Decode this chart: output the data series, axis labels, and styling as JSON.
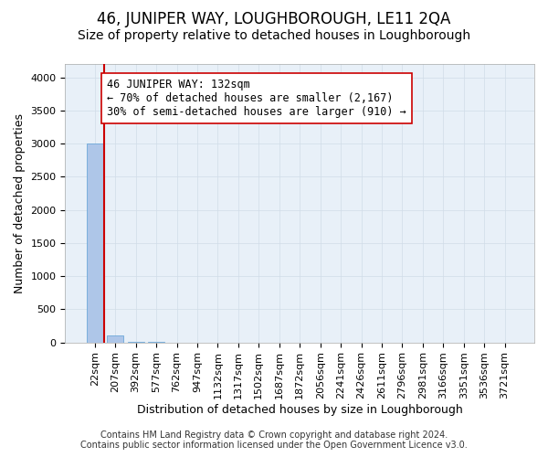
{
  "title": "46, JUNIPER WAY, LOUGHBOROUGH, LE11 2QA",
  "subtitle": "Size of property relative to detached houses in Loughborough",
  "xlabel": "Distribution of detached houses by size in Loughborough",
  "ylabel": "Number of detached properties",
  "footer_line1": "Contains HM Land Registry data © Crown copyright and database right 2024.",
  "footer_line2": "Contains public sector information licensed under the Open Government Licence v3.0.",
  "bin_labels": [
    "22sqm",
    "207sqm",
    "392sqm",
    "577sqm",
    "762sqm",
    "947sqm",
    "1132sqm",
    "1317sqm",
    "1502sqm",
    "1687sqm",
    "1872sqm",
    "2056sqm",
    "2241sqm",
    "2426sqm",
    "2611sqm",
    "2796sqm",
    "2981sqm",
    "3166sqm",
    "3351sqm",
    "3536sqm",
    "3721sqm"
  ],
  "bar_values": [
    3000,
    110,
    5,
    2,
    1,
    1,
    0,
    0,
    0,
    0,
    0,
    0,
    0,
    0,
    0,
    0,
    0,
    0,
    0,
    0,
    0
  ],
  "bar_color": "#aec6e8",
  "bar_edge_color": "#5a9fd4",
  "grid_color": "#d0dce8",
  "background_color": "#e8f0f8",
  "annotation_line1": "46 JUNIPER WAY: 132sqm",
  "annotation_line2": "← 70% of detached houses are smaller (2,167)",
  "annotation_line3": "30% of semi-detached houses are larger (910) →",
  "vline_x": 0.45,
  "vline_color": "#cc0000",
  "annotation_box_color": "#ffffff",
  "annotation_box_edge": "#cc0000",
  "ylim": [
    0,
    4200
  ],
  "yticks": [
    0,
    500,
    1000,
    1500,
    2000,
    2500,
    3000,
    3500,
    4000
  ],
  "title_fontsize": 12,
  "subtitle_fontsize": 10,
  "axis_label_fontsize": 9,
  "tick_fontsize": 8,
  "annotation_fontsize": 8.5
}
